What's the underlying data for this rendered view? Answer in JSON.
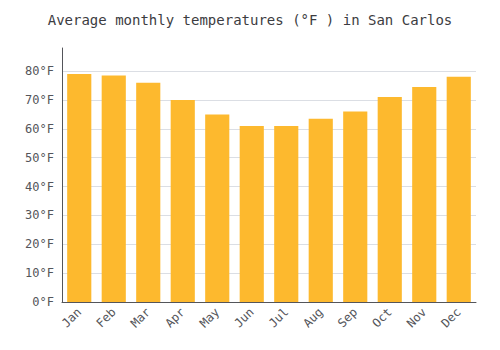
{
  "chart_data": {
    "type": "bar",
    "title": "Average monthly temperatures (°F ) in San Carlos",
    "categories": [
      "Jan",
      "Feb",
      "Mar",
      "Apr",
      "May",
      "Jun",
      "Jul",
      "Aug",
      "Sep",
      "Oct",
      "Nov",
      "Dec"
    ],
    "values": [
      79,
      78.5,
      76,
      70,
      65,
      61,
      61,
      63.5,
      66,
      71,
      74.5,
      78
    ],
    "color": "#FDB92E",
    "ylim": [
      0,
      88
    ],
    "yticks": [
      {
        "value": 0,
        "label": "0°F"
      },
      {
        "value": 10,
        "label": "10°F"
      },
      {
        "value": 20,
        "label": "20°F"
      },
      {
        "value": 30,
        "label": "30°F"
      },
      {
        "value": 40,
        "label": "40°F"
      },
      {
        "value": 50,
        "label": "50°F"
      },
      {
        "value": 60,
        "label": "60°F"
      },
      {
        "value": 70,
        "label": "70°F"
      },
      {
        "value": 80,
        "label": "80°F"
      }
    ],
    "grid": true
  }
}
